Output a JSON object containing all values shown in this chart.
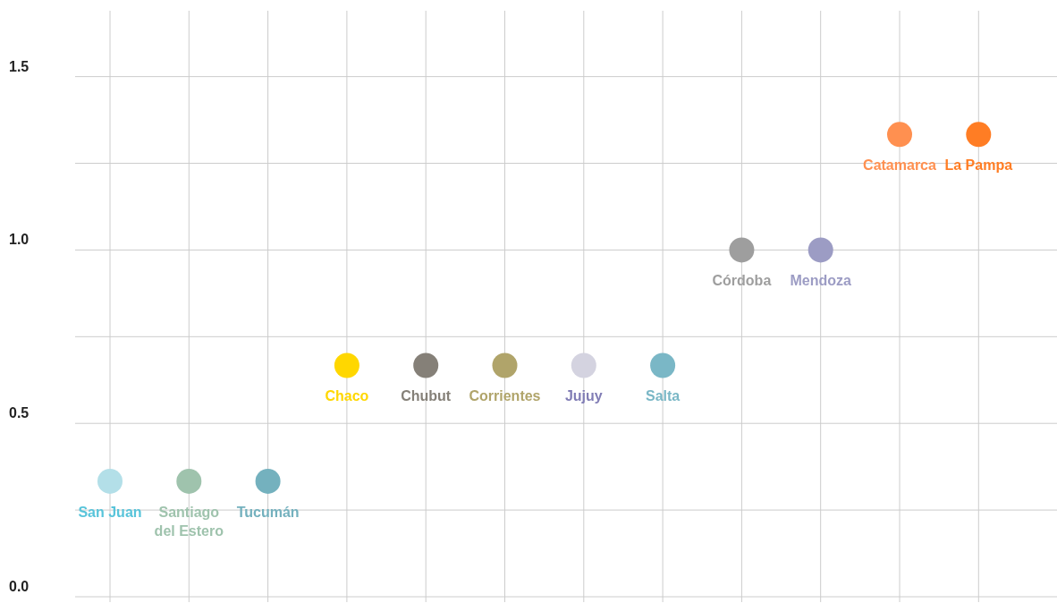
{
  "chart_data": {
    "type": "scatter",
    "categories": [
      "San Juan",
      "Santiago del Estero",
      "Tucumán",
      "Chaco",
      "Chubut",
      "Corrientes",
      "Jujuy",
      "Salta",
      "Córdoba",
      "Mendoza",
      "Catamarca",
      "La Pampa"
    ],
    "values": [
      0.333,
      0.333,
      0.333,
      0.667,
      0.667,
      0.667,
      0.667,
      0.667,
      1,
      1,
      1.333,
      1.333
    ],
    "colors": [
      "#b3dfe8",
      "#9fc3ad",
      "#74b1be",
      "#ffd700",
      "#858078",
      "#b0a46a",
      "#d4d3e0",
      "#7ab7c6",
      "#9e9e9e",
      "#9c9cc4",
      "#ff9050",
      "#ff7d24"
    ],
    "ylim": [
      0,
      1.69
    ],
    "yticks": [
      {
        "value": 0,
        "label": "0.0"
      },
      {
        "value": 0.25,
        "label": null
      },
      0.5,
      {
        "value": 0.75,
        "label": null
      },
      {
        "value": 1,
        "label": "1.0"
      },
      {
        "value": 1.25,
        "label": null
      },
      1.5
    ],
    "grid": true,
    "marker": "circle"
  }
}
